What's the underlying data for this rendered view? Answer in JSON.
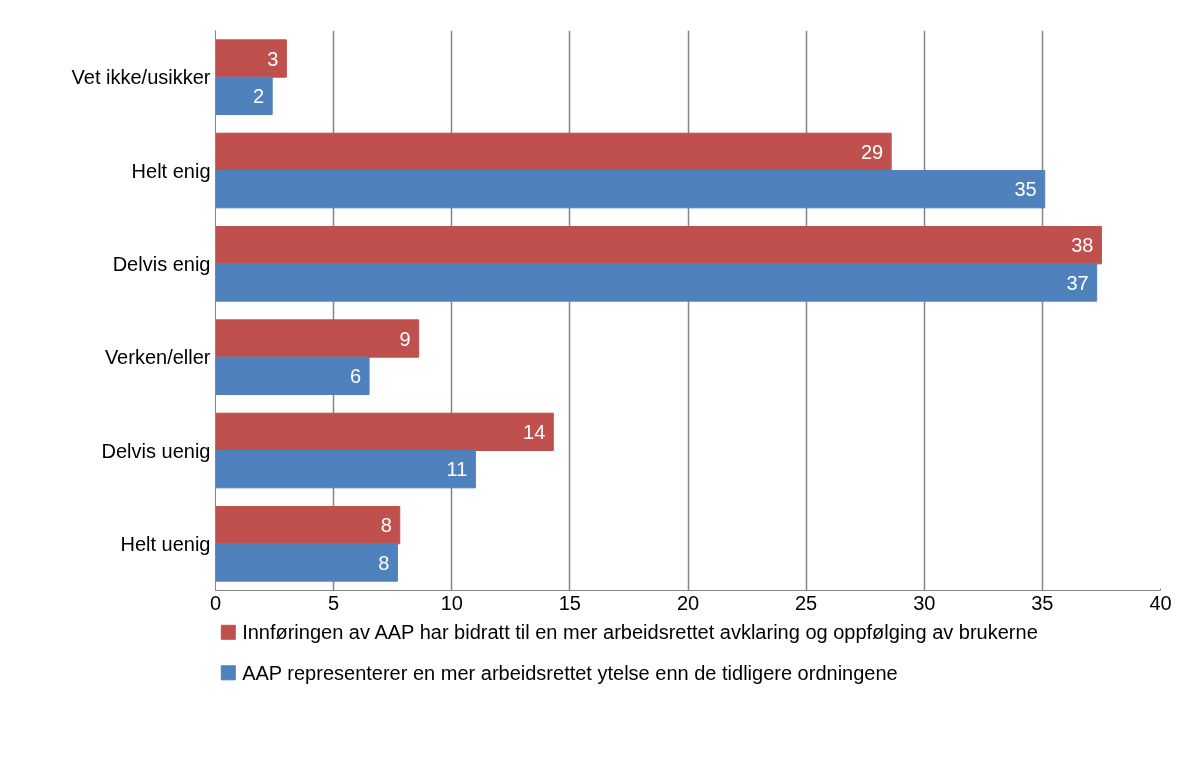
{
  "chart_data": {
    "type": "bar",
    "orientation": "horizontal",
    "categories": [
      "Vet ikke/usikker",
      "Helt enig",
      "Delvis enig",
      "Verken/eller",
      "Delvis uenig",
      "Helt uenig"
    ],
    "series": [
      {
        "name": "Innføringen av AAP har bidratt til en mer arbeidsrettet avklaring og oppfølging av brukerne",
        "color": "#c0504d",
        "values": [
          3.0,
          28.6,
          37.5,
          8.6,
          14.3,
          7.8
        ],
        "value_labels": [
          "3",
          "29",
          "38",
          "9",
          "14",
          "8"
        ]
      },
      {
        "name": "AAP representerer en mer arbeidsrettet ytelse enn de tidligere ordningene",
        "color": "#4f81bd",
        "values": [
          2.4,
          35.1,
          37.3,
          6.5,
          11.0,
          7.7
        ],
        "value_labels": [
          "2",
          "35",
          "37",
          "6",
          "11",
          "8"
        ]
      }
    ],
    "xlim": [
      0,
      40
    ],
    "xticks": [
      0,
      5,
      10,
      15,
      20,
      25,
      30,
      35,
      40
    ],
    "grid": "x",
    "legend": "bottom"
  }
}
